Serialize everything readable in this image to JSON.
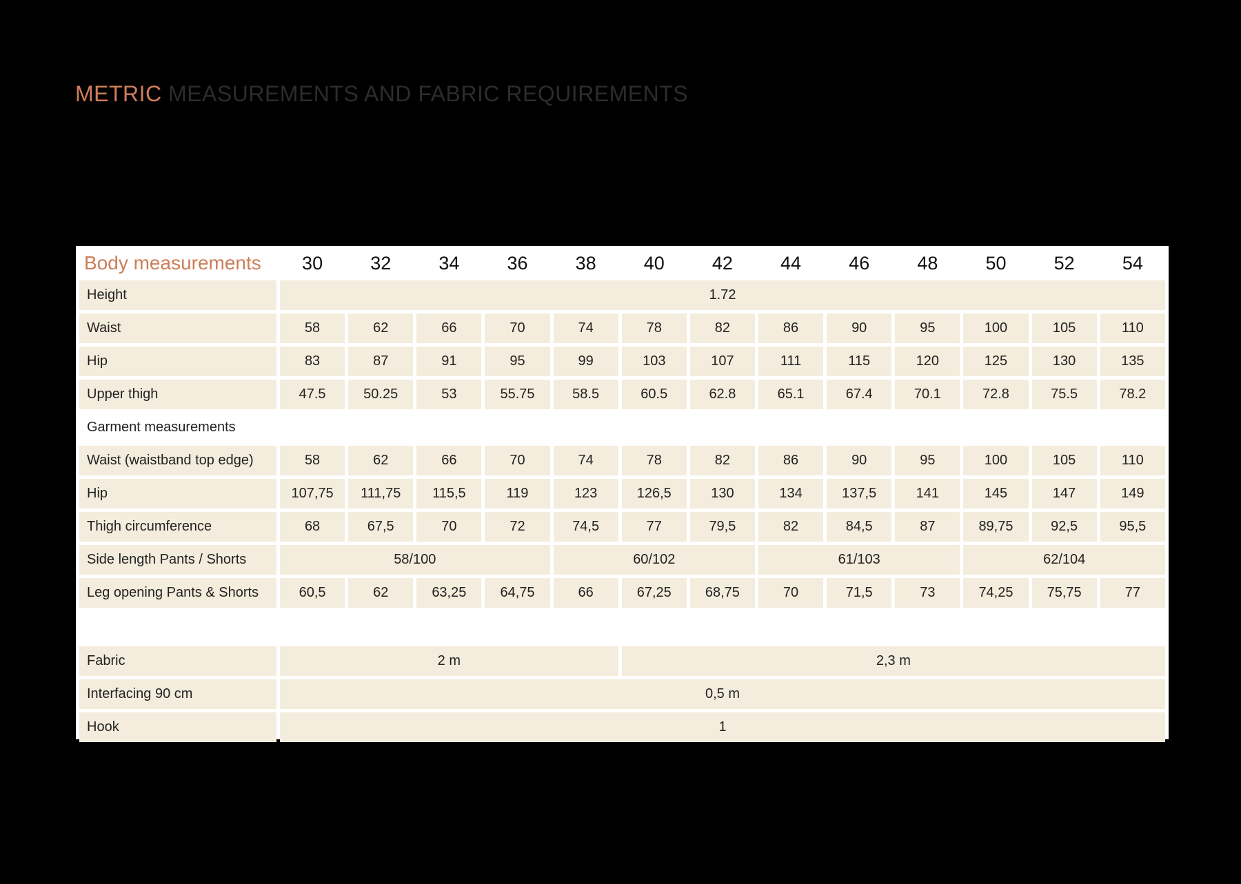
{
  "title": {
    "accent": "METRIC",
    "rest": "MEASUREMENTS AND FABRIC REQUIREMENTS"
  },
  "colors": {
    "accent": "#d07e5a",
    "cell_background": "#f4ecdc",
    "page_background": "#000000"
  },
  "table": {
    "header_label": "Body measurements",
    "sizes": [
      "30",
      "32",
      "34",
      "36",
      "38",
      "40",
      "42",
      "44",
      "46",
      "48",
      "50",
      "52",
      "54"
    ],
    "height": {
      "label": "Height",
      "value": "1.72"
    },
    "waist": {
      "label": "Waist",
      "values": [
        "58",
        "62",
        "66",
        "70",
        "74",
        "78",
        "82",
        "86",
        "90",
        "95",
        "100",
        "105",
        "110"
      ]
    },
    "hip": {
      "label": "Hip",
      "values": [
        "83",
        "87",
        "91",
        "95",
        "99",
        "103",
        "107",
        "111",
        "115",
        "120",
        "125",
        "130",
        "135"
      ]
    },
    "upper_thigh": {
      "label": "Upper thigh",
      "values": [
        "47.5",
        "50.25",
        "53",
        "55.75",
        "58.5",
        "60.5",
        "62.8",
        "65.1",
        "67.4",
        "70.1",
        "72.8",
        "75.5",
        "78.2"
      ]
    },
    "garment_section_label": "Garment measurements",
    "garment_waist": {
      "label": "Waist (waistband top edge)",
      "values": [
        "58",
        "62",
        "66",
        "70",
        "74",
        "78",
        "82",
        "86",
        "90",
        "95",
        "100",
        "105",
        "110"
      ]
    },
    "garment_hip": {
      "label": "Hip",
      "values": [
        "107,75",
        "111,75",
        "115,5",
        "119",
        "123",
        "126,5",
        "130",
        "134",
        "137,5",
        "141",
        "145",
        "147",
        "149"
      ]
    },
    "thigh_circumference": {
      "label": "Thigh circumference",
      "values": [
        "68",
        "67,5",
        "70",
        "72",
        "74,5",
        "77",
        "79,5",
        "82",
        "84,5",
        "87",
        "89,75",
        "92,5",
        "95,5"
      ]
    },
    "side_length": {
      "label": "Side length Pants / Shorts",
      "groups": [
        "58/100",
        "60/102",
        "61/103",
        "62/104"
      ]
    },
    "leg_opening": {
      "label": "Leg opening Pants & Shorts",
      "values": [
        "60,5",
        "62",
        "63,25",
        "64,75",
        "66",
        "67,25",
        "68,75",
        "70",
        "71,5",
        "73",
        "74,25",
        "75,75",
        "77"
      ]
    },
    "fabric": {
      "label": "Fabric",
      "groups": [
        "2 m",
        "2,3 m"
      ]
    },
    "interfacing": {
      "label": "Interfacing 90 cm",
      "value": "0,5 m"
    },
    "hook": {
      "label": "Hook",
      "value": "1"
    }
  }
}
